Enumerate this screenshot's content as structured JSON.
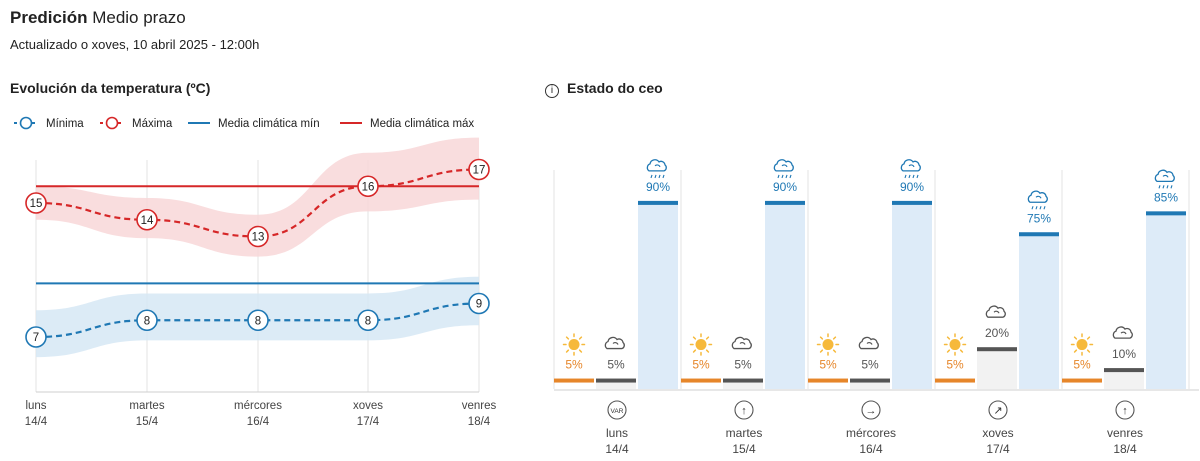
{
  "header": {
    "title_main": "Predición",
    "title_sub": "Medio prazo",
    "updated": "Actualizado o xoves, 10 abril 2025 - 12:00h"
  },
  "temp_section": {
    "title": "Evolución da temperatura (ºC)"
  },
  "sky_section": {
    "title": "Estado do ceo",
    "info_icon": "i"
  },
  "colors": {
    "min": "#1f78b4",
    "max": "#d62728",
    "min_band": "#d6e7f5",
    "max_band": "#f8d7d8",
    "sky_bar": "#ddebf8",
    "sky_bar_top": "#1f78b4",
    "sun_bar": "#e6862a",
    "cloud_bar": "#555555",
    "grid": "#e3e3e3"
  },
  "chart_data": [
    {
      "type": "line",
      "title": "Evolución da temperatura (ºC)",
      "legend": [
        "Mínima",
        "Máxima",
        "Media climática mín",
        "Media climática máx"
      ],
      "legend_position": "top-left",
      "categories": [
        {
          "day": "luns",
          "date": "14/4"
        },
        {
          "day": "martes",
          "date": "15/4"
        },
        {
          "day": "mércores",
          "date": "16/4"
        },
        {
          "day": "xoves",
          "date": "17/4"
        },
        {
          "day": "venres",
          "date": "18/4"
        }
      ],
      "series": [
        {
          "name": "Mínima",
          "values": [
            7,
            8,
            8,
            8,
            9
          ],
          "band_low": [
            5.8,
            6.8,
            6.8,
            6.8,
            7.7
          ],
          "band_high": [
            8.6,
            9.6,
            9.6,
            9.6,
            10.6
          ]
        },
        {
          "name": "Máxima",
          "values": [
            15,
            14,
            13,
            16,
            17
          ],
          "band_low": [
            14.0,
            12.9,
            11.8,
            14.5,
            15.2
          ],
          "band_high": [
            16.0,
            15.3,
            14.3,
            18.0,
            18.9
          ]
        }
      ],
      "climate": {
        "min": 10.2,
        "max": 16.0
      },
      "ylim": [
        3,
        19
      ],
      "grid": true
    },
    {
      "type": "bar",
      "title": "Estado do ceo",
      "days": [
        {
          "day": "luns",
          "date": "14/4",
          "wind": "VAR",
          "bars": [
            {
              "icon": "sun-icon",
              "label": "5%",
              "value": 5
            },
            {
              "icon": "cloud-icon",
              "label": "5%",
              "value": 5
            },
            {
              "icon": "rain-cloud-icon",
              "label": "90%",
              "value": 90
            }
          ]
        },
        {
          "day": "martes",
          "date": "15/4",
          "wind": "↑",
          "bars": [
            {
              "icon": "sun-icon",
              "label": "5%",
              "value": 5
            },
            {
              "icon": "cloud-icon",
              "label": "5%",
              "value": 5
            },
            {
              "icon": "rain-cloud-icon",
              "label": "90%",
              "value": 90
            }
          ]
        },
        {
          "day": "mércores",
          "date": "16/4",
          "wind": "→",
          "bars": [
            {
              "icon": "sun-icon",
              "label": "5%",
              "value": 5
            },
            {
              "icon": "cloud-icon",
              "label": "5%",
              "value": 5
            },
            {
              "icon": "rain-cloud-icon",
              "label": "90%",
              "value": 90
            }
          ]
        },
        {
          "day": "xoves",
          "date": "17/4",
          "wind": "↗",
          "bars": [
            {
              "icon": "sun-icon",
              "label": "5%",
              "value": 5
            },
            {
              "icon": "cloud-icon",
              "label": "20%",
              "value": 20
            },
            {
              "icon": "rain-cloud-icon",
              "label": "75%",
              "value": 75
            }
          ]
        },
        {
          "day": "venres",
          "date": "18/4",
          "wind": "↑",
          "bars": [
            {
              "icon": "sun-icon",
              "label": "5%",
              "value": 5
            },
            {
              "icon": "cloud-icon",
              "label": "10%",
              "value": 10
            },
            {
              "icon": "rain-cloud-icon",
              "label": "85%",
              "value": 85
            }
          ]
        }
      ],
      "ylim": [
        0,
        100
      ]
    }
  ]
}
